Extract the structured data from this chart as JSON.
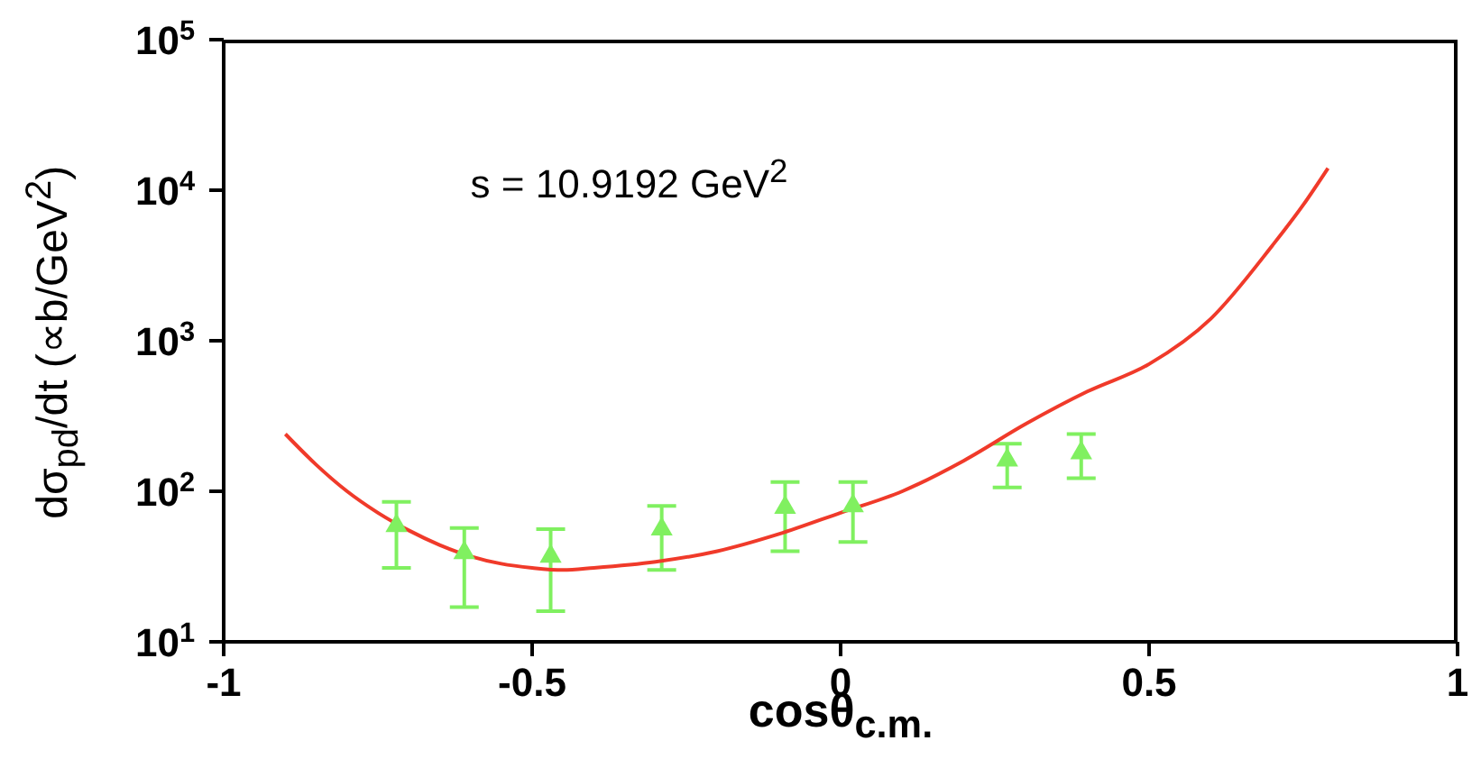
{
  "chart_data": {
    "type": "scatter",
    "xlabel": "cosθ$_{c.m.}$",
    "ylabel": "dσ$_{pd}$/dt (∝b/GeV$^{2}$)",
    "annotations": [
      "s = 10.9192 GeV$^{2}$"
    ],
    "log": "y",
    "grid": false,
    "xlim": [
      -1,
      1
    ],
    "xticks": [
      -1,
      -0.5,
      0,
      0.5,
      1
    ],
    "ylim": [
      10,
      100000
    ],
    "yticks": [
      {
        "value": 10,
        "label": "10$^{1}$"
      },
      {
        "value": 100,
        "label": "10$^{2}$"
      },
      {
        "value": 1000,
        "label": "10$^{3}$"
      },
      {
        "value": 10000,
        "label": "10$^{4}$"
      },
      {
        "value": 100000,
        "label": "10$^{5}$"
      }
    ],
    "series": [
      {
        "color": "#80f060",
        "marker": "triangle",
        "x": [
          -0.72,
          -0.61,
          -0.47,
          -0.29,
          -0.09,
          0.02,
          0.27,
          0.39
        ],
        "values": [
          59,
          39,
          37,
          56,
          78,
          80,
          161,
          180
        ],
        "errors": [
          [
            31,
            85
          ],
          [
            17,
            57
          ],
          [
            16,
            56
          ],
          [
            30,
            80
          ],
          [
            40,
            115
          ],
          [
            46,
            115
          ],
          [
            106,
            207
          ],
          [
            122,
            240
          ]
        ]
      },
      {
        "type": "line",
        "color": "#f03a2a",
        "marker": "none",
        "x": [
          -0.9,
          -0.85,
          -0.8,
          -0.75,
          -0.7,
          -0.65,
          -0.6,
          -0.55,
          -0.5,
          -0.45,
          -0.4,
          -0.3,
          -0.2,
          -0.1,
          0,
          0.1,
          0.2,
          0.3,
          0.4,
          0.5,
          0.6,
          0.7,
          0.75,
          0.79
        ],
        "values": [
          240,
          150,
          100,
          72,
          55,
          44,
          37,
          33,
          31,
          30,
          31,
          34,
          40,
          52,
          72,
          100,
          160,
          280,
          460,
          700,
          1400,
          4300,
          8000,
          14000
        ]
      }
    ]
  }
}
